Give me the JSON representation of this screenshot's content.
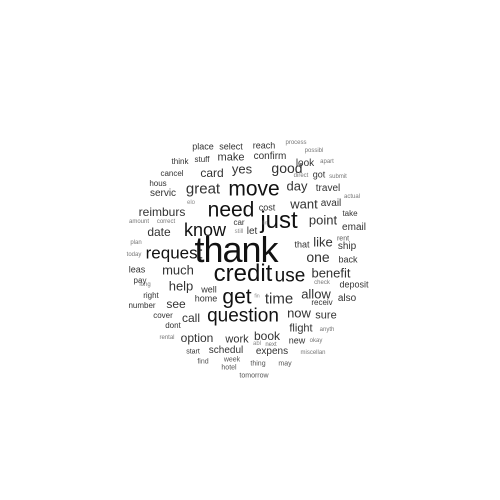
{
  "wordcloud": {
    "words": [
      "thank",
      "credit",
      "use",
      "get",
      "question",
      "just",
      "need",
      "move",
      "know",
      "request",
      "time",
      "great",
      "much",
      "help",
      "good",
      "yes",
      "one",
      "want",
      "benefit",
      "allow",
      "day",
      "point",
      "like",
      "now",
      "date",
      "reimburs",
      "card",
      "call",
      "option",
      "see",
      "book",
      "make",
      "flight",
      "sure",
      "work",
      "confirm",
      "cost",
      "let",
      "also",
      "ship",
      "avail",
      "expens",
      "schedul",
      "travel",
      "email",
      "look",
      "well",
      "back",
      "servic",
      "reach",
      "select",
      "place",
      "that",
      "take",
      "rent",
      "got",
      "receiv",
      "deposit",
      "new",
      "home",
      "leas",
      "right",
      "pay",
      "cover",
      "dont",
      "stuff",
      "think",
      "cancel",
      "hous",
      "number",
      "start",
      "find",
      "week",
      "hotel",
      "thing",
      "may",
      "tomorrow",
      "okay",
      "miscellan",
      "anyth",
      "check",
      "plan",
      "today",
      "amount",
      "correct",
      "rental",
      "long",
      "apart",
      "submit",
      "actual",
      "process",
      "possibl",
      "direct",
      "abl",
      "next",
      "car",
      "elo",
      "still",
      "lin",
      "fin"
    ]
  }
}
